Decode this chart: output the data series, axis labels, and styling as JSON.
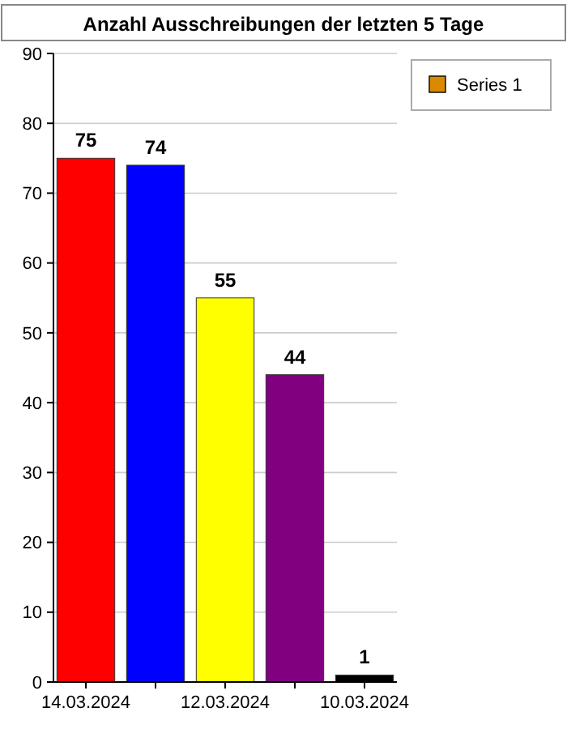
{
  "chart_data": {
    "type": "bar",
    "title": "Anzahl Ausschreibungen der letzten 5 Tage",
    "categories": [
      "14.03.2024",
      null,
      "12.03.2024",
      null,
      "10.03.2024"
    ],
    "series": [
      {
        "name": "Series 1",
        "color": "#d98a00",
        "colors": [
          "#ff0000",
          "#0000ff",
          "#ffff00",
          "#800080",
          "#000000"
        ],
        "values": [
          75,
          74,
          55,
          44,
          1
        ]
      }
    ],
    "ylim": [
      0,
      90
    ],
    "yticks": [
      0,
      10,
      20,
      30,
      40,
      50,
      60,
      70,
      80,
      90
    ],
    "grid": "y",
    "data_labels": true,
    "legend": "top right"
  }
}
